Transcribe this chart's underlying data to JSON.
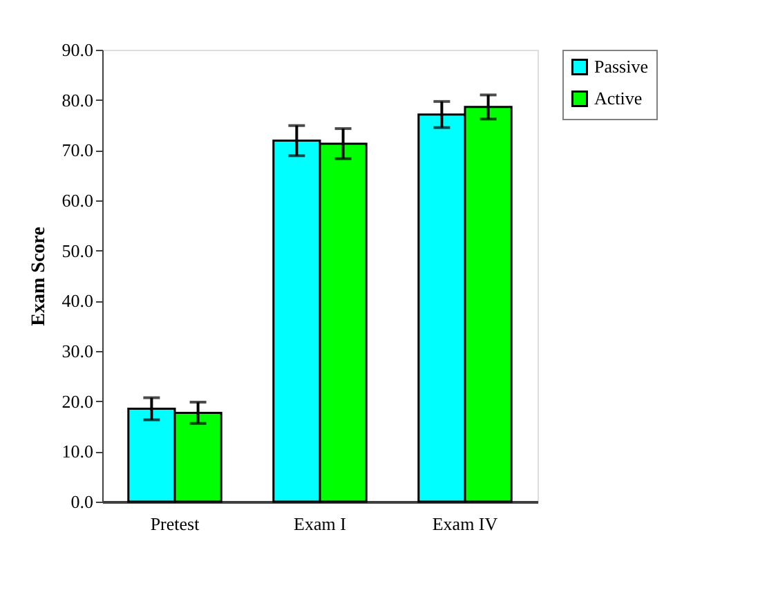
{
  "chart_data": {
    "type": "bar",
    "ylabel": "Exam Score",
    "categories": [
      "Pretest",
      "Exam I",
      "Exam IV"
    ],
    "series": [
      {
        "name": "Passive",
        "color": "#00ffff",
        "values": [
          18.5,
          71.9,
          77.1
        ],
        "errors": [
          2.2,
          3.0,
          2.6
        ]
      },
      {
        "name": "Active",
        "color": "#00ff00",
        "values": [
          17.7,
          71.3,
          78.6
        ],
        "errors": [
          2.1,
          3.0,
          2.4
        ]
      }
    ],
    "ylim": [
      0,
      90
    ],
    "yticks": [
      {
        "value": 0,
        "label": "0.0"
      },
      {
        "value": 10,
        "label": "10.0"
      },
      {
        "value": 20,
        "label": "20.0"
      },
      {
        "value": 30,
        "label": "30.0"
      },
      {
        "value": 40,
        "label": "40.0"
      },
      {
        "value": 50,
        "label": "50.0"
      },
      {
        "value": 60,
        "label": "60.0"
      },
      {
        "value": 70,
        "label": "70.0"
      },
      {
        "value": 80,
        "label": "80.0"
      },
      {
        "value": 90,
        "label": "90.0"
      }
    ],
    "grid": false,
    "legend": "right"
  }
}
